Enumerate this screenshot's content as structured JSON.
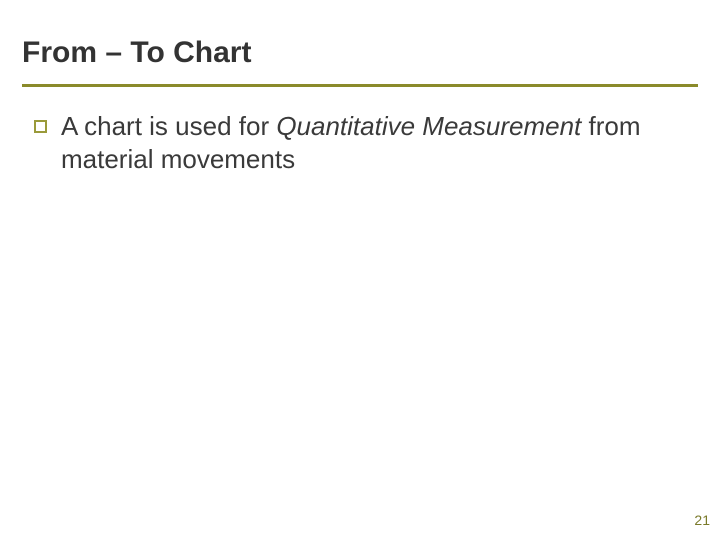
{
  "slide": {
    "title": "From – To Chart",
    "title_color": "#333333",
    "title_fontsize": 30,
    "rule_color": "#8a8a2a",
    "bullet_border_color": "#9a9a3a",
    "body_fontsize": 26,
    "body_color": "#3a3a3a",
    "background_color": "#ffffff",
    "bullets": [
      {
        "pre": "A chart is used for ",
        "emph": "Quantitative Measurement",
        "post": " from material movements"
      }
    ],
    "page_number": "21",
    "page_number_color": "#7a7a2a"
  }
}
